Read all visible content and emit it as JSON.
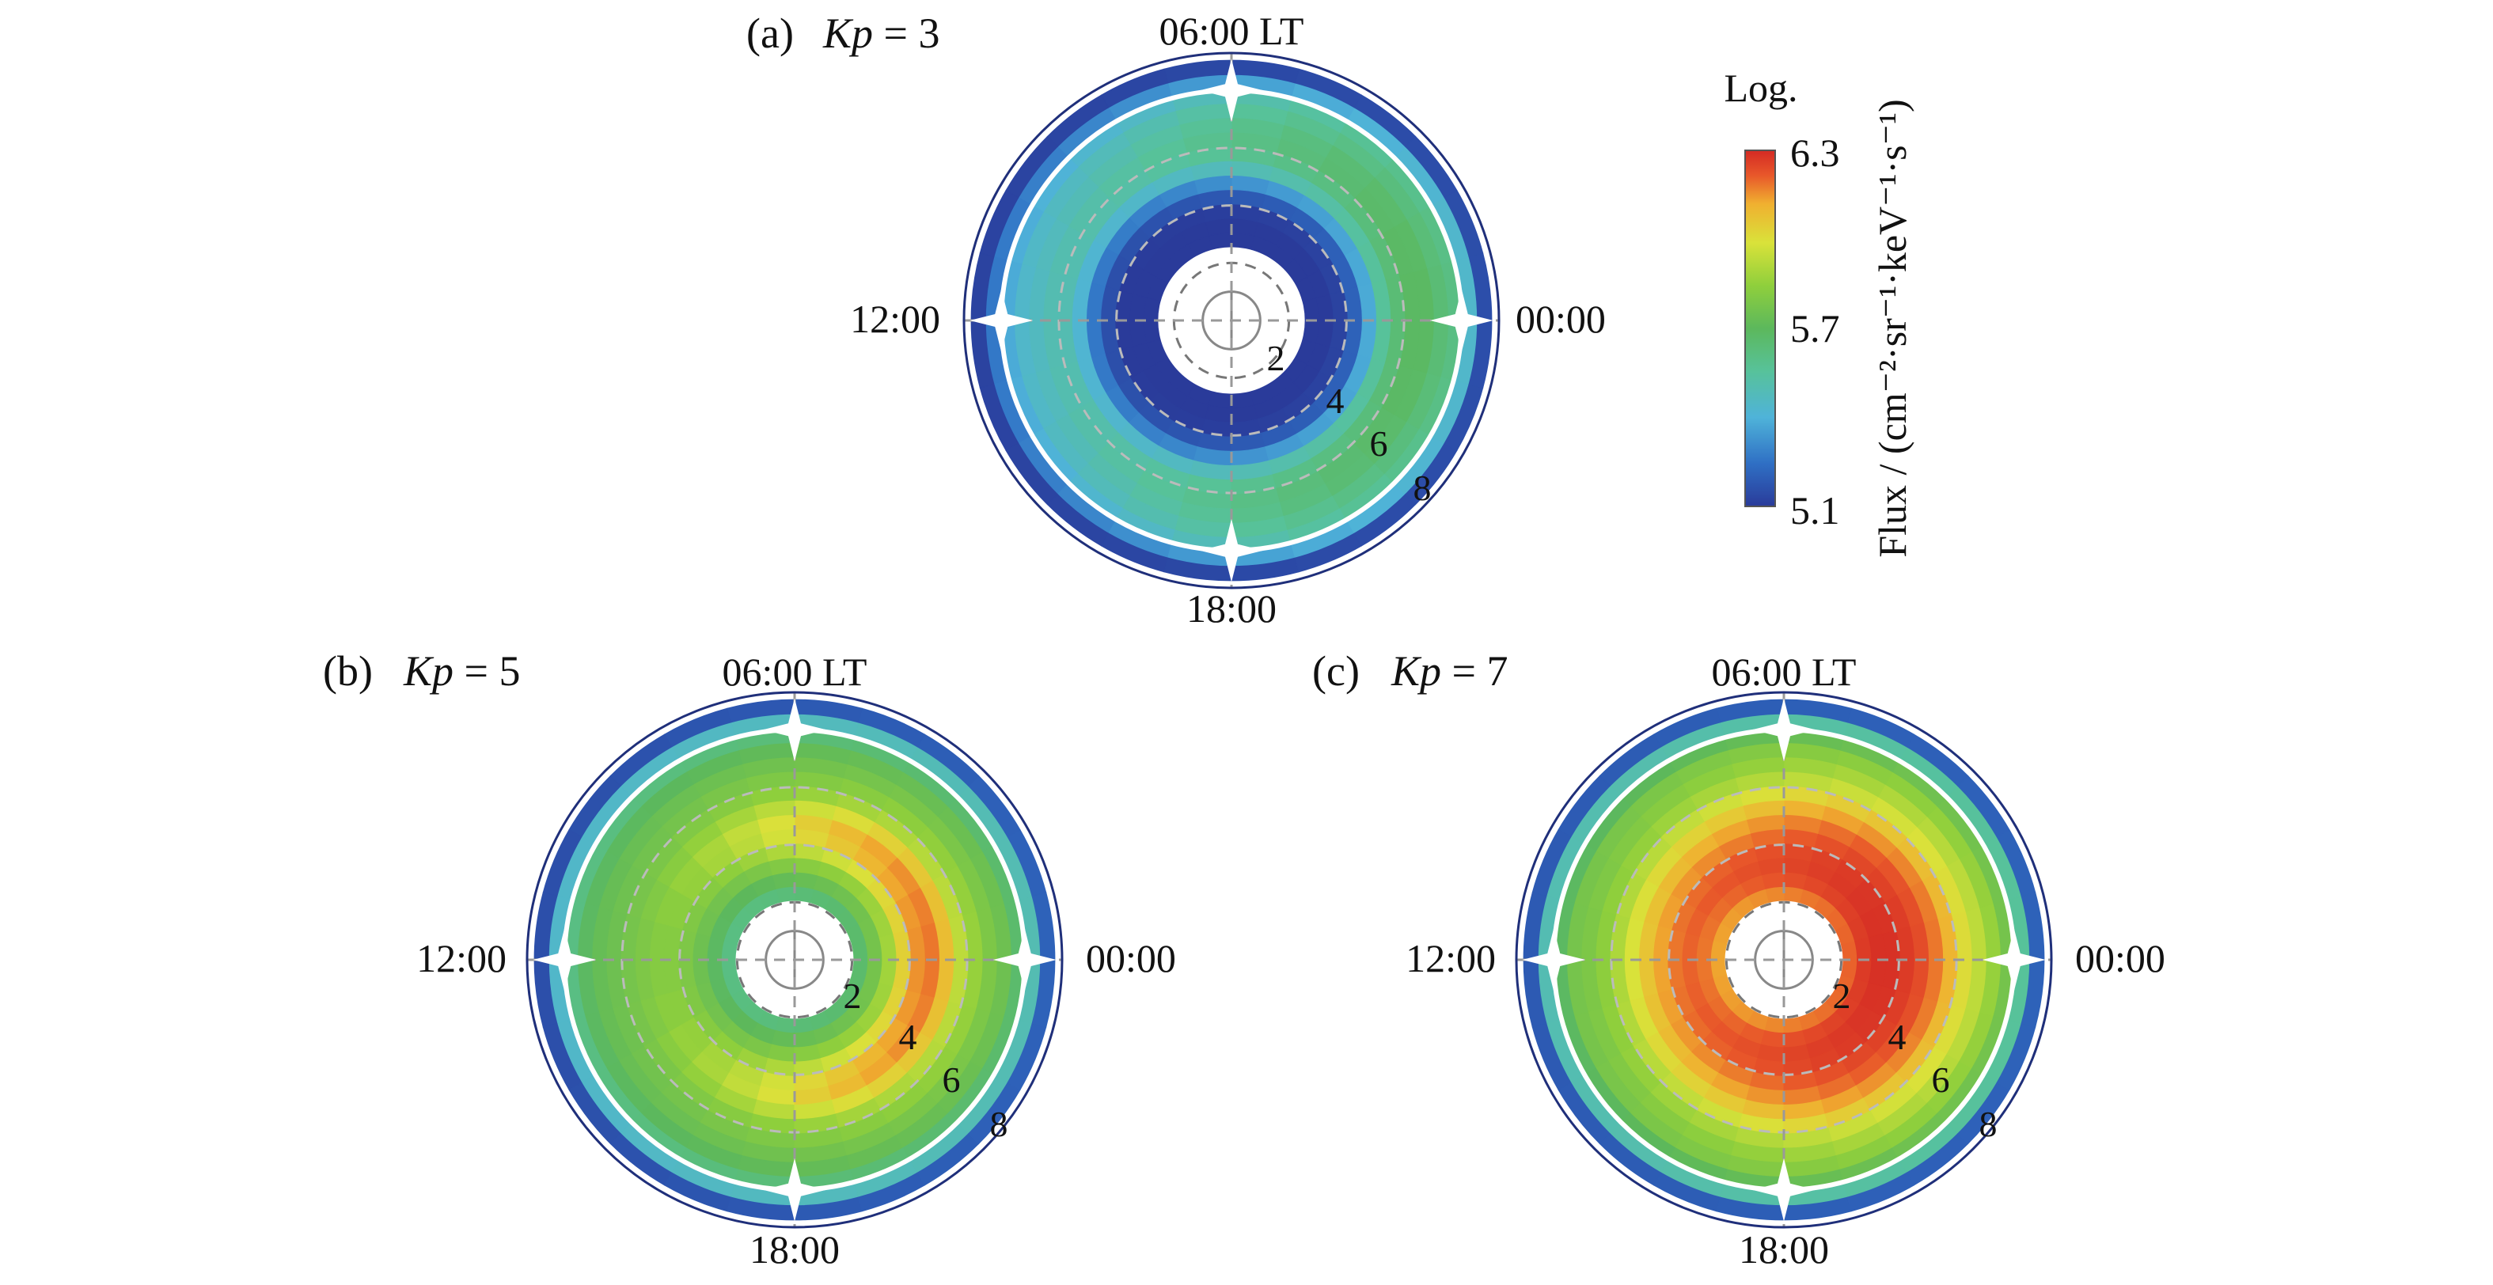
{
  "chart_data": [
    {
      "type": "polar-heatmap",
      "panel": "(a)",
      "kp_label": "Kp",
      "kp_equals": " = 3",
      "lt_labels": {
        "top": "06:00 LT",
        "left": "12:00",
        "right": "00:00",
        "bottom": "18:00"
      },
      "l_labels": [
        "2",
        "4",
        "6",
        "8"
      ],
      "l_values": [
        2,
        4,
        6,
        8
      ],
      "flux_profile": {
        "L": [
          2.8,
          3.3,
          3.8,
          4.3,
          4.8,
          5.3,
          5.8,
          6.3,
          6.8,
          7.3,
          7.8,
          8.3,
          8.8
        ],
        "log_flux_midnight": [
          5.1,
          5.1,
          5.12,
          5.2,
          5.35,
          5.5,
          5.58,
          5.62,
          5.62,
          5.58,
          5.55,
          5.4,
          5.15
        ],
        "log_flux_noon": [
          5.1,
          5.1,
          5.1,
          5.15,
          5.25,
          5.38,
          5.45,
          5.45,
          5.42,
          5.4,
          5.35,
          5.25,
          5.12
        ]
      }
    },
    {
      "type": "polar-heatmap",
      "panel": "(b)",
      "kp_label": "Kp",
      "kp_equals": " = 5",
      "lt_labels": {
        "top": "06:00 LT",
        "left": "12:00",
        "right": "00:00",
        "bottom": "18:00"
      },
      "l_labels": [
        "2",
        "4",
        "6",
        "8"
      ],
      "l_values": [
        2,
        4,
        6,
        8
      ],
      "flux_profile": {
        "L": [
          2.3,
          2.8,
          3.3,
          3.8,
          4.3,
          4.8,
          5.3,
          5.8,
          6.3,
          6.8,
          7.3,
          7.8,
          8.3,
          8.8
        ],
        "log_flux_midnight": [
          5.6,
          5.7,
          5.8,
          5.95,
          6.08,
          6.12,
          6.0,
          5.85,
          5.78,
          5.72,
          5.68,
          5.6,
          5.45,
          5.2
        ],
        "log_flux_noon": [
          5.55,
          5.62,
          5.68,
          5.72,
          5.74,
          5.74,
          5.72,
          5.7,
          5.68,
          5.66,
          5.62,
          5.55,
          5.4,
          5.15
        ]
      }
    },
    {
      "type": "polar-heatmap",
      "panel": "(c)",
      "kp_label": "Kp",
      "kp_equals": " = 7",
      "lt_labels": {
        "top": "06:00 LT",
        "left": "12:00",
        "right": "00:00",
        "bottom": "18:00"
      },
      "l_labels": [
        "2",
        "4",
        "6",
        "8"
      ],
      "l_values": [
        2,
        4,
        6,
        8
      ],
      "flux_profile": {
        "L": [
          2.3,
          2.8,
          3.3,
          3.8,
          4.3,
          4.8,
          5.3,
          5.8,
          6.3,
          6.8,
          7.3,
          7.8,
          8.3,
          8.8
        ],
        "log_flux_midnight": [
          6.15,
          6.25,
          6.28,
          6.28,
          6.25,
          6.2,
          6.12,
          6.02,
          5.92,
          5.85,
          5.78,
          5.7,
          5.5,
          5.2
        ],
        "log_flux_noon": [
          6.05,
          6.12,
          6.15,
          6.12,
          6.05,
          5.98,
          5.9,
          5.82,
          5.76,
          5.72,
          5.7,
          5.62,
          5.45,
          5.18
        ]
      }
    }
  ],
  "colorbar": {
    "title": "Log.",
    "label": "Flux / (cm⁻²·sr⁻¹·keV⁻¹·s⁻¹)",
    "ticks": [
      "6.3",
      "5.7",
      "5.1"
    ],
    "min": 5.1,
    "max": 6.3,
    "colors": [
      "#2a3b9a",
      "#2f6fc4",
      "#4fb3d9",
      "#57c29a",
      "#5cb85c",
      "#8fcf3c",
      "#d9e23a",
      "#f0b030",
      "#e8572a",
      "#d42a24"
    ]
  }
}
